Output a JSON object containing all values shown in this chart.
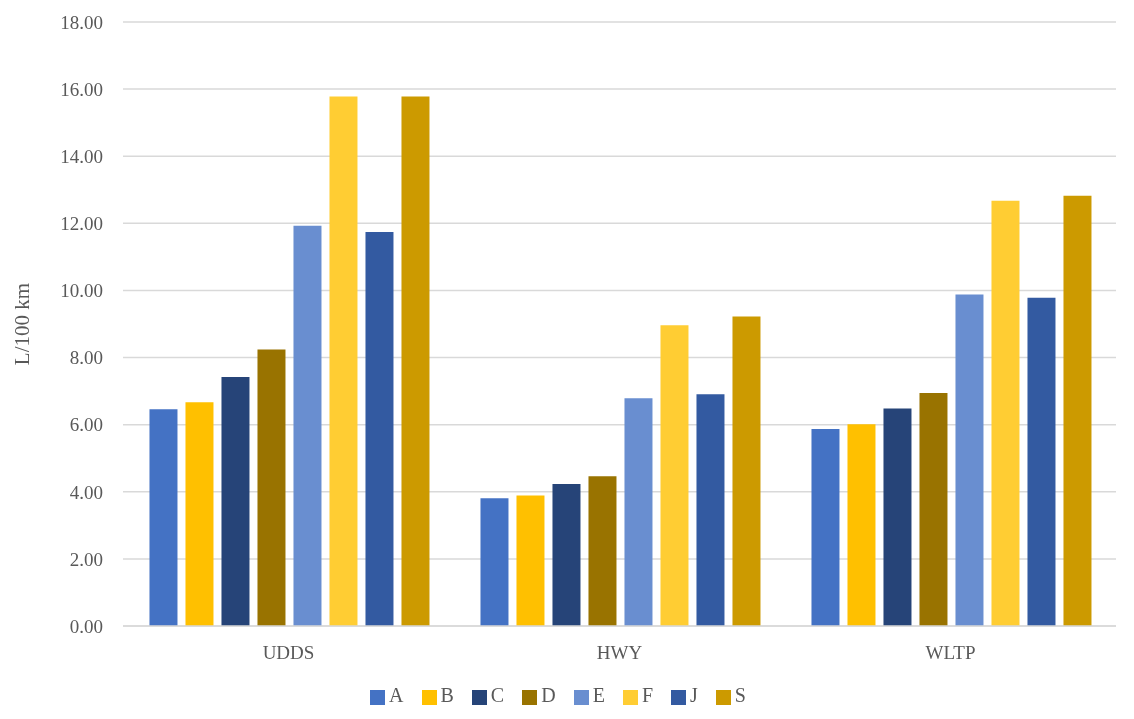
{
  "chart_data": {
    "type": "bar",
    "ylabel": "L/100 km",
    "categories": [
      "UDDS",
      "HWY",
      "WLTP"
    ],
    "series": [
      {
        "name": "A",
        "color": "#4472c4",
        "values": [
          6.46,
          3.81,
          5.87
        ]
      },
      {
        "name": "B",
        "color": "#ffc000",
        "values": [
          6.67,
          3.89,
          6.01
        ]
      },
      {
        "name": "C",
        "color": "#264478",
        "values": [
          7.42,
          4.23,
          6.48
        ]
      },
      {
        "name": "D",
        "color": "#997300",
        "values": [
          8.24,
          4.46,
          6.94
        ]
      },
      {
        "name": "E",
        "color": "#698ed0",
        "values": [
          11.93,
          6.79,
          9.88
        ]
      },
      {
        "name": "F",
        "color": "#ffcd33",
        "values": [
          15.78,
          8.96,
          12.67
        ]
      },
      {
        "name": "J",
        "color": "#335aa1",
        "values": [
          11.74,
          6.91,
          9.78
        ]
      },
      {
        "name": "S",
        "color": "#cc9a00",
        "values": [
          15.78,
          9.22,
          12.82
        ]
      }
    ],
    "ylim": [
      0,
      18
    ],
    "yticks": [
      {
        "value": 0,
        "label": "0.00"
      },
      {
        "value": 2,
        "label": "2.00"
      },
      {
        "value": 4,
        "label": "4.00"
      },
      {
        "value": 6,
        "label": "6.00"
      },
      {
        "value": 8,
        "label": "8.00"
      },
      {
        "value": 10,
        "label": "10.00"
      },
      {
        "value": 12,
        "label": "12.00"
      },
      {
        "value": 14,
        "label": "14.00"
      },
      {
        "value": 16,
        "label": "16.00"
      },
      {
        "value": 18,
        "label": "18.00"
      }
    ],
    "grid": "y",
    "legend": "bottom"
  }
}
